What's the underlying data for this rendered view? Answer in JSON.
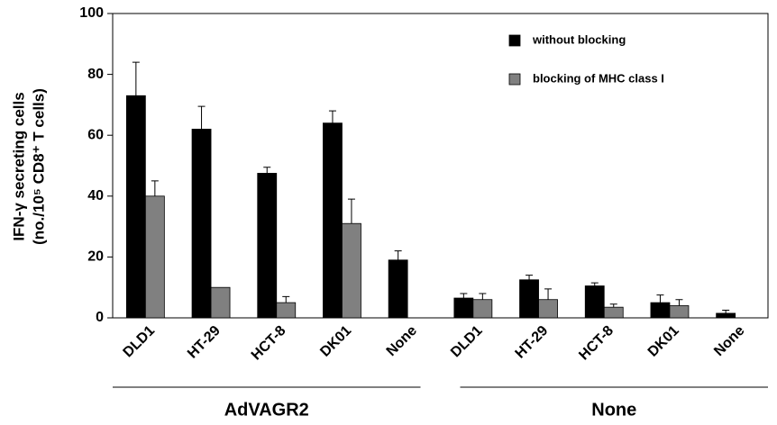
{
  "chart_data": {
    "type": "bar",
    "y_label": [
      "IFN-γ secreting cells",
      "(no./10⁵ CD8⁺ T cells)"
    ],
    "categories": [
      "DLD1",
      "HT-29",
      "HCT-8",
      "DK01",
      "None",
      "DLD1",
      "HT-29",
      "HCT-8",
      "DK01",
      "None"
    ],
    "groups": [
      {
        "name": "AdVAGR2",
        "size": 5
      },
      {
        "name": "None",
        "size": 5
      }
    ],
    "series": [
      {
        "name": "without blocking",
        "color": "#000000",
        "values": [
          73,
          62,
          47.5,
          64,
          19,
          6.5,
          12.5,
          10.5,
          5,
          1.5
        ],
        "errors": [
          11,
          7.5,
          2,
          4,
          3,
          1.5,
          1.5,
          1,
          2.5,
          1
        ]
      },
      {
        "name": "blocking of MHC class I",
        "color": "#808080",
        "values": [
          40,
          10,
          5,
          31,
          null,
          6,
          6,
          3.5,
          4,
          null
        ],
        "errors": [
          5,
          0,
          2,
          8,
          null,
          2,
          3.5,
          1,
          2,
          null
        ]
      }
    ],
    "ylim": [
      0,
      100
    ],
    "yticks": [
      0,
      20,
      40,
      60,
      80,
      100
    ],
    "grid": false,
    "legend": "upper right"
  }
}
